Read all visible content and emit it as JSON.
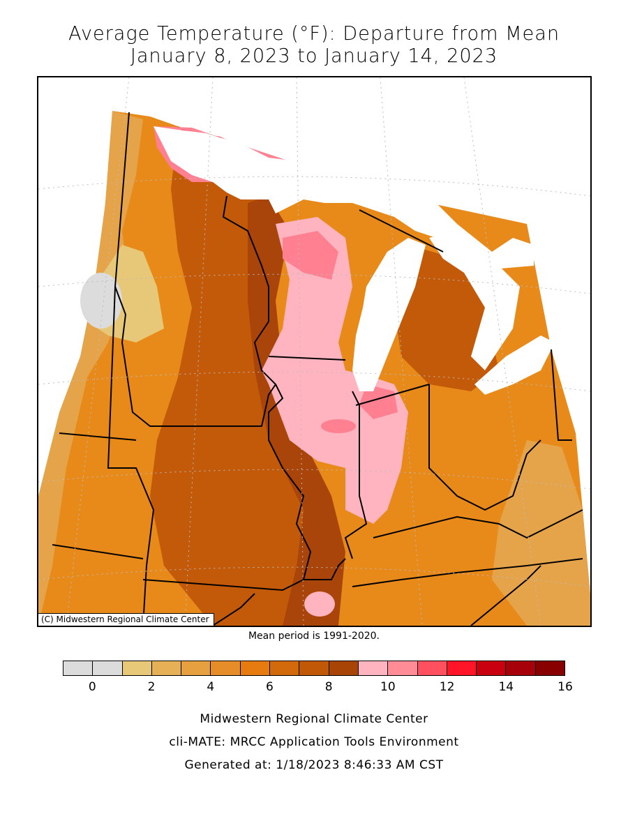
{
  "title": {
    "line1": "Average Temperature (°F): Departure from Mean",
    "line2": "January 8, 2023 to January 14, 2023"
  },
  "map": {
    "copyright": "(C) Midwestern Regional Climate Center",
    "land_color": "#ffffff",
    "water_color": "#ffffff",
    "region_colors": {
      "gray": "#dcdcdc",
      "pale": "#e6c878",
      "light_orange": "#e6a44a",
      "orange": "#e88a1a",
      "dark_orange": "#d46e10",
      "brown": "#c25a0a",
      "dark_brown": "#a9440a",
      "pink": "#ffb4c0",
      "rose": "#ff8090",
      "red": "#ff5060",
      "bright_red": "#ff1428",
      "dark_red": "#cc0010"
    }
  },
  "mean_period": "Mean period is 1991-2020.",
  "legend": {
    "colors": [
      "#dcdcdc",
      "#dcdcdc",
      "#e6c878",
      "#e6b056",
      "#e6a040",
      "#e68c28",
      "#e67c10",
      "#d26a0c",
      "#c05808",
      "#a84406",
      "#ffb4c0",
      "#ff8c96",
      "#ff5060",
      "#ff1428",
      "#c8000f",
      "#a8000a",
      "#880000"
    ],
    "ticks": [
      "0",
      "2",
      "4",
      "6",
      "8",
      "10",
      "12",
      "14",
      "16"
    ]
  },
  "footer": {
    "line1": "Midwestern Regional Climate Center",
    "line2": "cli-MATE: MRCC Application Tools Environment",
    "line3": "Generated at: 1/18/2023 8:46:33 AM CST"
  }
}
